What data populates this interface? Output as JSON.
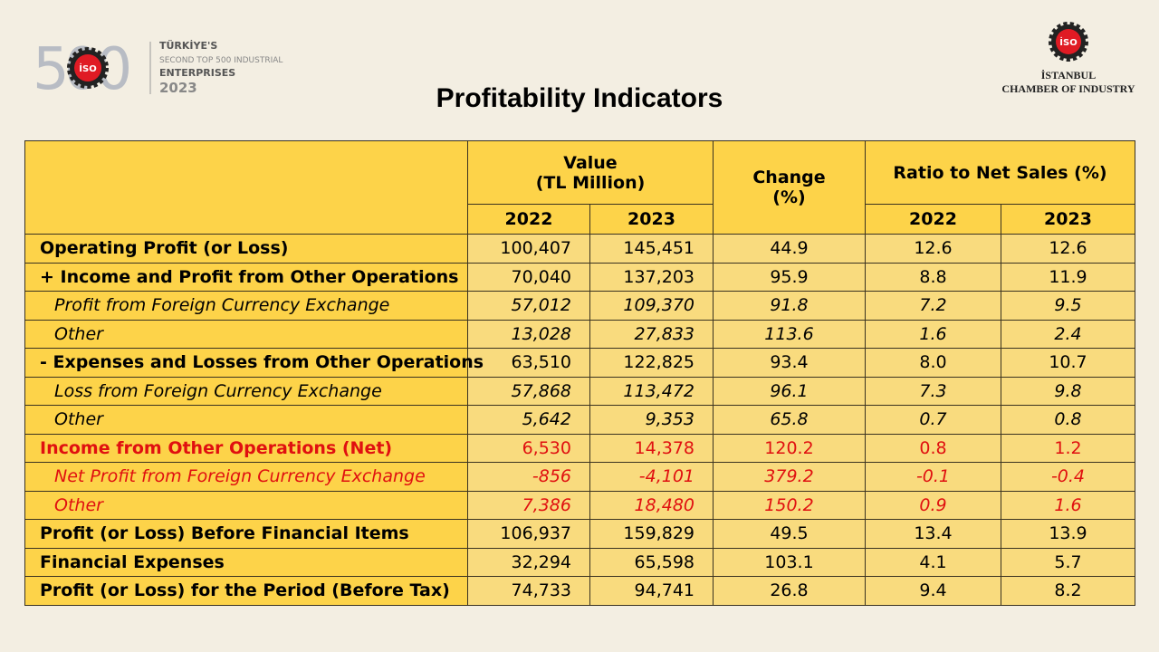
{
  "left_logo": {
    "number": "500",
    "badge": "İSO",
    "lines": [
      "TÜRKİYE'S",
      "SECOND TOP 500 INDUSTRIAL",
      "ENTERPRISES",
      "2023"
    ]
  },
  "right_logo": {
    "badge": "İSO",
    "lines": [
      "İSTANBUL",
      "CHAMBER OF INDUSTRY"
    ]
  },
  "title": "Profitability Indicators",
  "table": {
    "header": {
      "value": [
        "Value",
        "(TL Million)"
      ],
      "change": [
        "Change",
        "(%)"
      ],
      "ratio": "Ratio to Net Sales (%)",
      "years": [
        "2022",
        "2023",
        "2022",
        "2023"
      ]
    },
    "rows": [
      [
        "Operating Profit (or Loss)",
        "100,407",
        "145,451",
        "44.9",
        "12.6",
        "12.6"
      ],
      [
        "+ Income and Profit from Other Operations",
        "70,040",
        "137,203",
        "95.9",
        "8.8",
        "11.9"
      ],
      [
        "Profit from Foreign Currency Exchange",
        "57,012",
        "109,370",
        "91.8",
        "7.2",
        "9.5"
      ],
      [
        "Other",
        "13,028",
        "27,833",
        "113.6",
        "1.6",
        "2.4"
      ],
      [
        "- Expenses and Losses from Other Operations",
        "63,510",
        "122,825",
        "93.4",
        "8.0",
        "10.7"
      ],
      [
        "Loss from Foreign Currency Exchange",
        "57,868",
        "113,472",
        "96.1",
        "7.3",
        "9.8"
      ],
      [
        "Other",
        "5,642",
        "9,353",
        "65.8",
        "0.7",
        "0.8"
      ],
      [
        "Income from Other Operations (Net)",
        "6,530",
        "14,378",
        "120.2",
        "0.8",
        "1.2"
      ],
      [
        "Net Profit from Foreign Currency Exchange",
        "-856",
        "-4,101",
        "379.2",
        "-0.1",
        "-0.4"
      ],
      [
        "Other",
        "7,386",
        "18,480",
        "150.2",
        "0.9",
        "1.6"
      ],
      [
        "Profit (or Loss) Before Financial Items",
        "106,937",
        "159,829",
        "49.5",
        "13.4",
        "13.9"
      ],
      [
        "Financial Expenses",
        "32,294",
        "65,598",
        "103.1",
        "4.1",
        "5.7"
      ],
      [
        "Profit (or Loss) for the Period (Before Tax)",
        "74,733",
        "94,741",
        "26.8",
        "9.4",
        "8.2"
      ]
    ]
  }
}
